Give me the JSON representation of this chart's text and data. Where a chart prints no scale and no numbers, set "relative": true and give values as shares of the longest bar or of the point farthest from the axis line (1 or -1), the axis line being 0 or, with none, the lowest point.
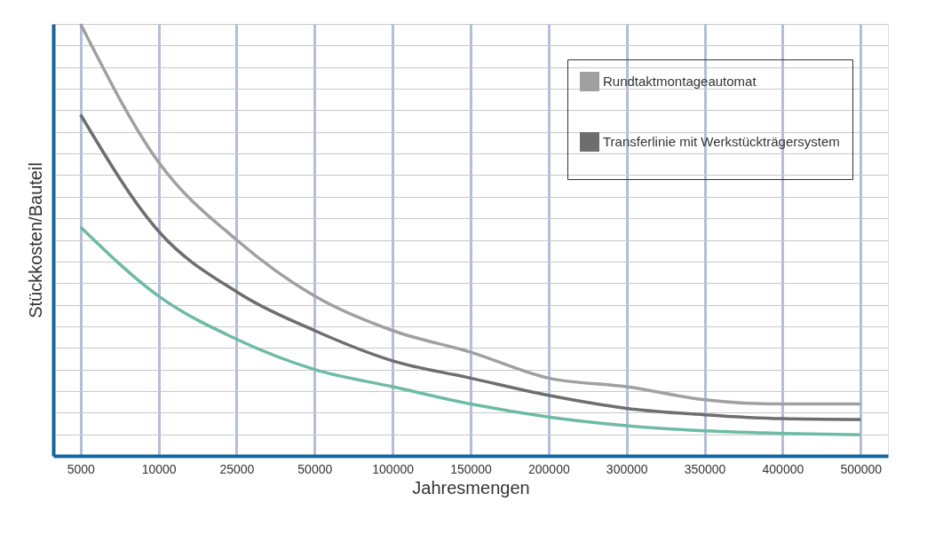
{
  "chart_data": {
    "type": "line",
    "xlabel": "Jahresmengen",
    "ylabel": "Stückkosten/Bauteil",
    "categories": [
      "5000",
      "10000",
      "25000",
      "50000",
      "100000",
      "150000",
      "200000",
      "300000",
      "350000",
      "400000",
      "500000"
    ],
    "relative": true,
    "grid": true,
    "legend": "top right",
    "marker": "none",
    "line_style": "solid",
    "series": [
      {
        "name": "Rundtaktmontageautomat",
        "color": "#a0a0a0",
        "values": [
          1,
          0.68,
          0.5,
          0.37,
          0.29,
          0.24,
          0.18,
          0.16,
          0.13,
          0.12,
          0.12
        ]
      },
      {
        "name": "Transferlinie mit Werkstückträgersystem",
        "color": "#6e6e6e",
        "values": [
          0.79,
          0.52,
          0.38,
          0.29,
          0.22,
          0.18,
          0.14,
          0.11,
          0.095,
          0.086,
          0.084
        ]
      },
      {
        "color": "#6dbba5",
        "values": [
          0.53,
          0.37,
          0.27,
          0.2,
          0.16,
          0.12,
          0.09,
          0.07,
          0.058,
          0.052,
          0.049
        ]
      }
    ]
  }
}
